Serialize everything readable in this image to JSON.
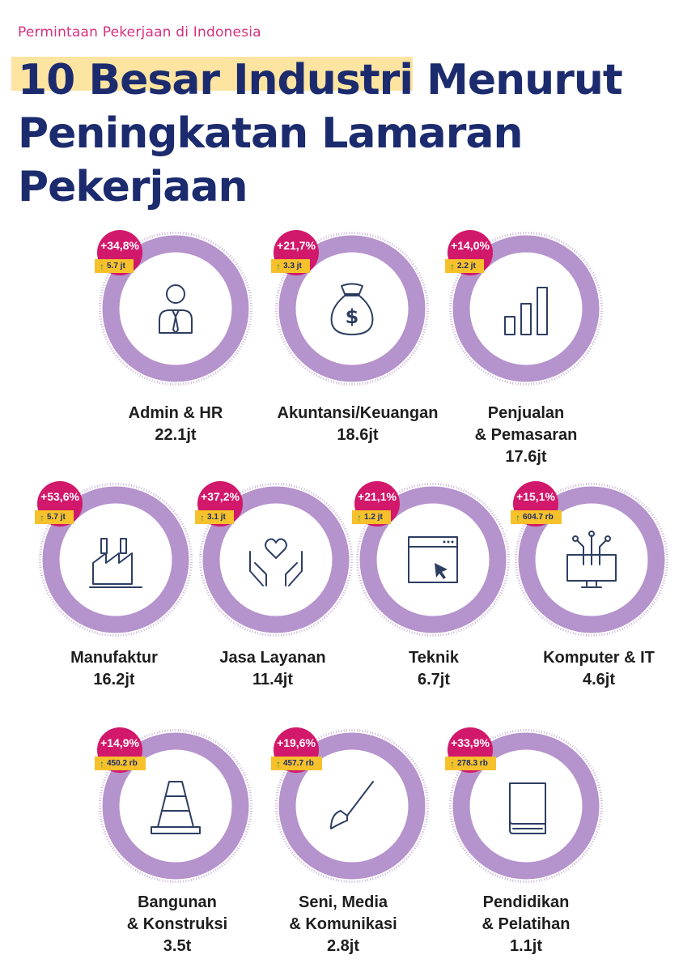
{
  "header": {
    "kicker": "Permintaan Pekerjaan di Indonesia",
    "title": "10 Besar Industri Menurut Peningkatan Lamaran Pekerjaan"
  },
  "colors": {
    "ring": "#b593cc",
    "badge": "#d2186b",
    "delta": "#f6c12b",
    "title": "#1b2b6e",
    "highlight": "#fde4a1"
  },
  "industries": [
    {
      "icon": "person-tie-icon",
      "pct": "+34,8%",
      "delta": "5.7 jt",
      "lines": [
        "Admin & HR"
      ],
      "total": "22.1jt"
    },
    {
      "icon": "money-bag-icon",
      "pct": "+21,7%",
      "delta": "3.3 jt",
      "lines": [
        "Akuntansi/Keuangan"
      ],
      "total": "18.6jt"
    },
    {
      "icon": "bar-chart-icon",
      "pct": "+14,0%",
      "delta": "2.2 jt",
      "lines": [
        "Penjualan",
        "& Pemasaran"
      ],
      "total": "17.6jt"
    },
    {
      "icon": "factory-icon",
      "pct": "+53,6%",
      "delta": "5.7 jt",
      "lines": [
        "Manufaktur"
      ],
      "total": "16.2jt"
    },
    {
      "icon": "hands-heart-icon",
      "pct": "+37,2%",
      "delta": "3.1 jt",
      "lines": [
        "Jasa Layanan"
      ],
      "total": "11.4jt"
    },
    {
      "icon": "browser-cursor-icon",
      "pct": "+21,1%",
      "delta": "1.2 jt",
      "lines": [
        "Teknik"
      ],
      "total": "6.7jt"
    },
    {
      "icon": "computer-circuit-icon",
      "pct": "+15,1%",
      "delta": "604.7 rb",
      "lines": [
        "Komputer & IT"
      ],
      "total": "4.6jt"
    },
    {
      "icon": "traffic-cone-icon",
      "pct": "+14,9%",
      "delta": "450.2 rb",
      "lines": [
        "Bangunan",
        "& Konstruksi"
      ],
      "total": "3.5t"
    },
    {
      "icon": "paintbrush-icon",
      "pct": "+19,6%",
      "delta": "457.7 rb",
      "lines": [
        "Seni, Media",
        "& Komunikasi"
      ],
      "total": "2.8jt"
    },
    {
      "icon": "book-icon",
      "pct": "+33,9%",
      "delta": "278.3 rb",
      "lines": [
        "Pendidikan",
        "& Pelatihan"
      ],
      "total": "1.1jt"
    }
  ]
}
